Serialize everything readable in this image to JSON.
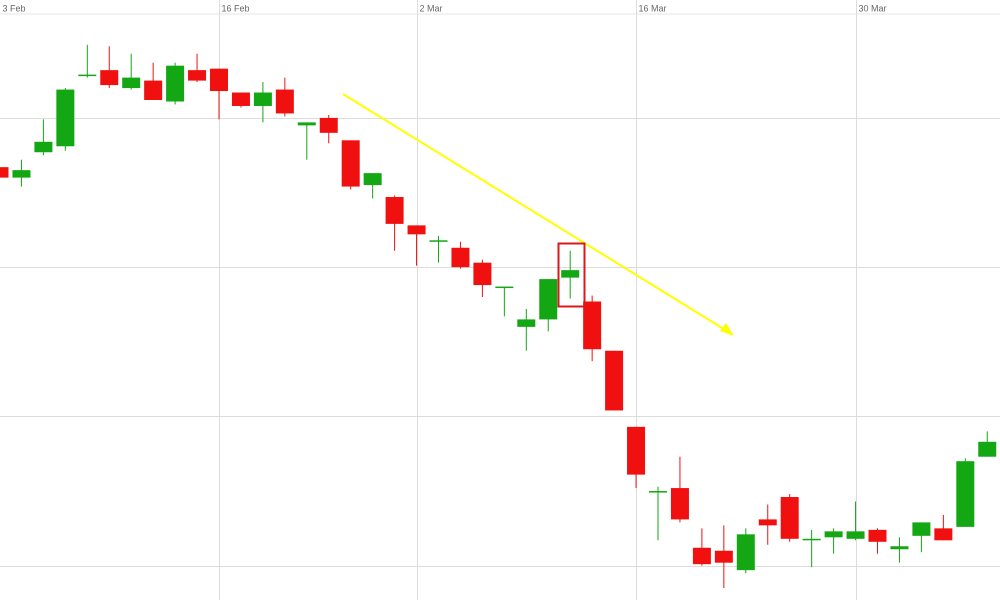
{
  "chart_data": {
    "type": "candlestick",
    "categories": [
      "3 Feb",
      null,
      null,
      null,
      null,
      null,
      null,
      null,
      null,
      null,
      "16 Feb",
      null,
      null,
      null,
      null,
      null,
      null,
      null,
      null,
      "2 Mar",
      null,
      null,
      null,
      null,
      null,
      null,
      null,
      null,
      null,
      "16 Mar",
      null,
      null,
      null,
      null,
      null,
      null,
      null,
      null,
      null,
      "30 Mar",
      null,
      null,
      null,
      null,
      null,
      null
    ],
    "open": [
      3.67,
      3.6,
      3.77,
      3.81,
      4.28,
      4.32,
      4.2,
      4.25,
      4.11,
      4.32,
      4.33,
      4.17,
      4.08,
      4.19,
      3.95,
      4.0,
      3.85,
      3.55,
      3.47,
      3.28,
      3.18,
      3.13,
      3.03,
      2.86,
      2.6,
      2.65,
      2.93,
      2.77,
      2.44,
      1.93,
      1.49,
      1.52,
      1.12,
      1.1,
      0.97,
      1.31,
      1.46,
      1.17,
      1.19,
      1.18,
      1.24,
      1.11,
      1.2,
      1.25,
      1.26,
      1.73
    ],
    "high": [
      3.68,
      3.72,
      3.99,
      4.2,
      4.49,
      4.48,
      4.43,
      4.37,
      4.37,
      4.43,
      4.33,
      4.17,
      4.24,
      4.27,
      3.97,
      4.02,
      3.85,
      3.63,
      3.48,
      3.28,
      3.21,
      3.17,
      3.05,
      2.87,
      2.72,
      2.92,
      3.11,
      2.81,
      2.44,
      1.93,
      1.53,
      1.73,
      1.25,
      1.27,
      1.25,
      1.41,
      1.48,
      1.24,
      1.25,
      1.43,
      1.25,
      1.19,
      1.29,
      1.34,
      1.72,
      1.9
    ],
    "low": [
      3.6,
      3.54,
      3.75,
      3.78,
      4.27,
      4.2,
      4.19,
      4.12,
      4.09,
      4.24,
      3.99,
      4.07,
      3.97,
      4.01,
      3.72,
      3.83,
      3.52,
      3.46,
      3.11,
      3.01,
      3.03,
      2.99,
      2.8,
      2.67,
      2.44,
      2.57,
      2.79,
      2.37,
      2.04,
      1.52,
      1.17,
      1.29,
      1.0,
      0.85,
      0.95,
      1.14,
      1.16,
      0.99,
      1.08,
      1.17,
      1.08,
      1.02,
      1.09,
      1.17,
      1.26,
      1.73
    ],
    "close": [
      3.6,
      3.65,
      3.84,
      4.19,
      4.29,
      4.22,
      4.27,
      4.12,
      4.35,
      4.25,
      4.18,
      4.08,
      4.17,
      4.03,
      3.97,
      3.9,
      3.54,
      3.63,
      3.29,
      3.22,
      3.18,
      3.0,
      2.88,
      2.87,
      2.65,
      2.92,
      2.98,
      2.45,
      2.04,
      1.61,
      1.5,
      1.31,
      1.01,
      1.02,
      1.21,
      1.27,
      1.18,
      1.18,
      1.23,
      1.23,
      1.16,
      1.13,
      1.29,
      1.17,
      1.7,
      1.83
    ],
    "up_color": "#13a713",
    "down_color": "#f01010",
    "ylim": [
      0.77,
      4.79
    ],
    "yticks": [
      1,
      2,
      3,
      4
    ],
    "grid": true
  }
}
